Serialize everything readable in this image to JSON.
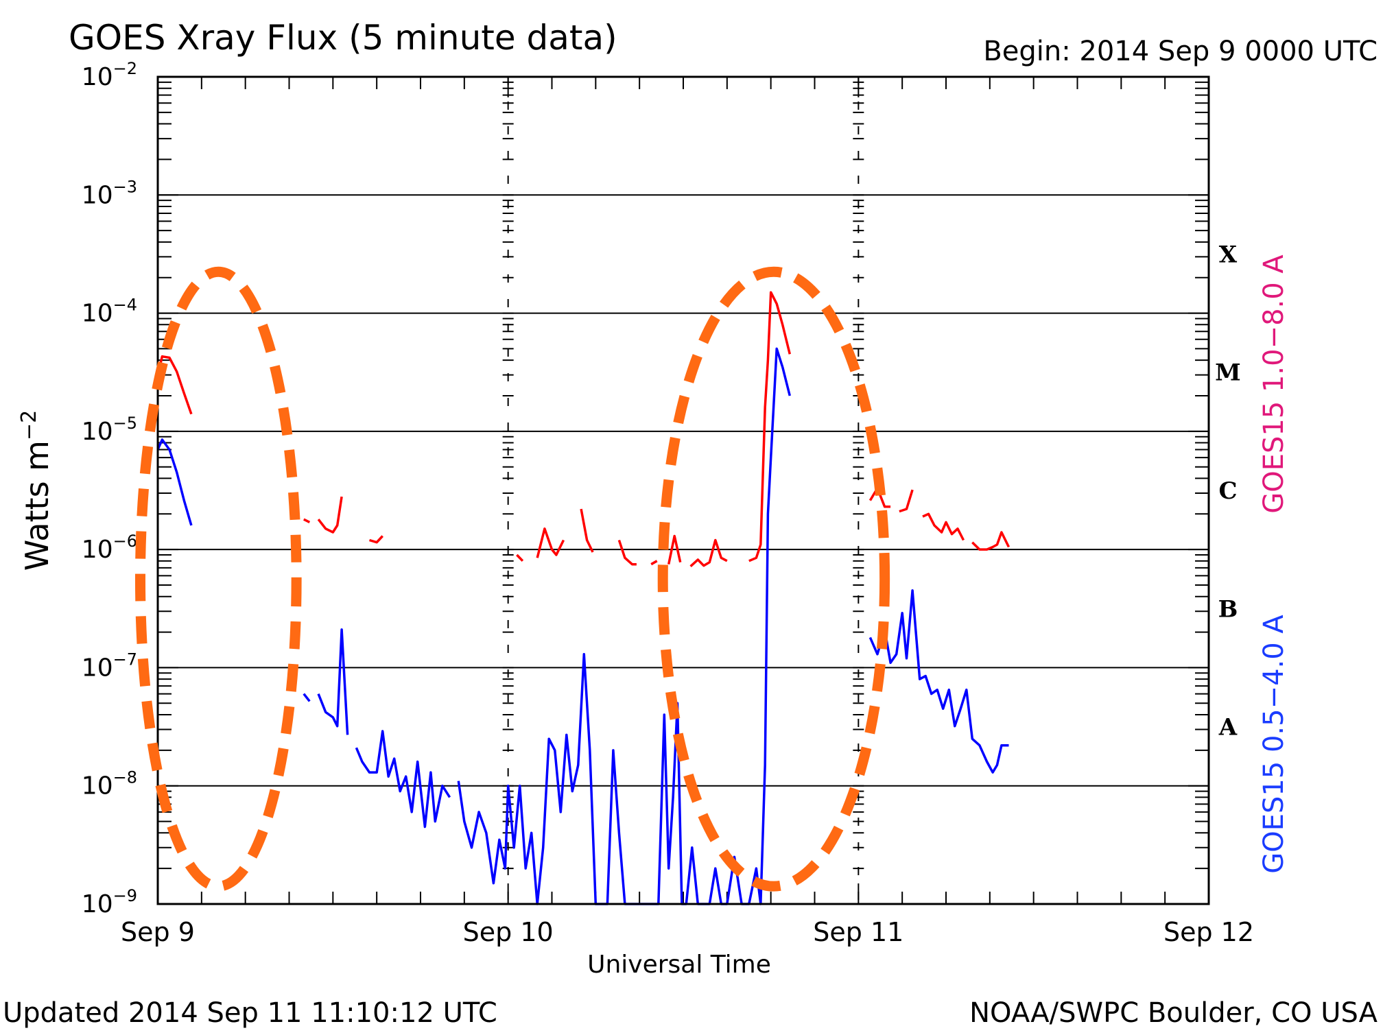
{
  "chart_data": {
    "type": "line",
    "title": "GOES Xray Flux (5 minute data)",
    "begin": "Begin:  2014 Sep 9 0000 UTC",
    "xlabel": "Universal Time",
    "ylabel": "Watts m",
    "ylabel_sup": "−2",
    "updated": "Updated 2014 Sep 11 11:10:12 UTC",
    "credit": "NOAA/SWPC Boulder, CO USA",
    "y_scale": "log",
    "ylim": [
      1e-09,
      0.01
    ],
    "xlim": [
      0,
      72
    ],
    "x_unit": "hours since 2014 Sep 9 0000 UTC",
    "grid": true,
    "x_ticks": [
      {
        "x": 0,
        "label": "Sep 9"
      },
      {
        "x": 24,
        "label": "Sep 10"
      },
      {
        "x": 48,
        "label": "Sep 11"
      },
      {
        "x": 72,
        "label": "Sep 12"
      }
    ],
    "y_ticks": [
      {
        "exp": -2,
        "base": "10",
        "sup": "−2"
      },
      {
        "exp": -3,
        "base": "10",
        "sup": "−3"
      },
      {
        "exp": -4,
        "base": "10",
        "sup": "−4"
      },
      {
        "exp": -5,
        "base": "10",
        "sup": "−5"
      },
      {
        "exp": -6,
        "base": "10",
        "sup": "−6"
      },
      {
        "exp": -7,
        "base": "10",
        "sup": "−7"
      },
      {
        "exp": -8,
        "base": "10",
        "sup": "−8"
      },
      {
        "exp": -9,
        "base": "10",
        "sup": "−9"
      }
    ],
    "class_labels": [
      {
        "label": "X",
        "exp": -3.5
      },
      {
        "label": "M",
        "exp": -4.5
      },
      {
        "label": "C",
        "exp": -5.5
      },
      {
        "label": "B",
        "exp": -6.5
      },
      {
        "label": "A",
        "exp": -7.5
      }
    ],
    "legend": [
      {
        "name": "GOES15 1.0−8.0 A",
        "color": "#e0187a"
      },
      {
        "name": "GOES15 0.5−4.0 A",
        "color": "#1a3cff"
      }
    ],
    "annotations": [
      {
        "type": "dashed-ellipse",
        "color": "#ff6a13",
        "x_range": [
          -1.2,
          9.5
        ],
        "log_range": [
          -3.65,
          -8.85
        ]
      },
      {
        "type": "dashed-ellipse",
        "color": "#ff6a13",
        "x_range": [
          34.6,
          49.8
        ],
        "log_range": [
          -3.65,
          -8.85
        ]
      }
    ],
    "series": [
      {
        "name": "GOES15 1.0−8.0 A",
        "color": "#ff0000",
        "x": [
          0,
          0.3,
          0.8,
          1.3,
          1.8,
          2.3,
          3,
          4,
          5,
          6,
          7,
          8,
          8.6,
          9.2,
          10,
          10.4,
          11,
          11.5,
          12,
          12.3,
          12.6,
          13.5,
          14.5,
          15,
          15.4,
          16,
          17,
          18,
          19,
          20,
          21,
          22,
          23,
          24,
          24.6,
          25,
          26,
          26.5,
          27,
          27.3,
          27.8,
          28.4,
          29,
          29.4,
          29.8,
          30.4,
          31,
          31.6,
          32,
          32.5,
          32.8,
          33.8,
          34.2,
          35,
          35.4,
          35.8,
          36.5,
          37,
          37.4,
          37.8,
          38.2,
          38.6,
          39,
          39.8,
          40.5,
          41,
          41.3,
          41.6,
          41.8,
          42,
          42.4,
          42.8,
          43.3,
          44,
          45,
          46,
          47,
          48,
          48.8,
          49.3,
          49.8,
          50.2,
          50.8,
          51.3,
          51.7,
          52.4,
          52.8,
          53.2,
          53.7,
          54,
          54.4,
          54.8,
          55.2,
          55.8,
          56.3,
          56.8,
          57.2,
          57.5,
          57.8,
          58.3
        ],
        "y": [
          3e-05,
          4.3e-05,
          4.2e-05,
          3.2e-05,
          2.1e-05,
          1.4e-05,
          8e-06,
          5.5e-06,
          4.2e-06,
          3.8e-06,
          3.2e-06,
          2.7e-06,
          2.3e-06,
          2.1e-06,
          1.8e-06,
          1.7e-06,
          1.8e-06,
          1.5e-06,
          1.4e-06,
          1.6e-06,
          2.8e-06,
          1.3e-06,
          1.2e-06,
          1.15e-06,
          1.3e-06,
          1.1e-06,
          1e-06,
          1e-06,
          9.5e-07,
          9.7e-07,
          9e-07,
          9.8e-07,
          8.5e-07,
          1.05e-06,
          9e-07,
          8e-07,
          8.5e-07,
          1.5e-06,
          1e-06,
          9e-07,
          1.2e-06,
          1.1e-06,
          2.2e-06,
          1.2e-06,
          9.5e-07,
          8.5e-07,
          9e-07,
          1.2e-06,
          8.5e-07,
          7.5e-07,
          7.5e-07,
          7.5e-07,
          8e-07,
          7.5e-07,
          1.3e-06,
          7.8e-07,
          7.2e-07,
          8.2e-07,
          7.3e-07,
          7.8e-07,
          1.2e-06,
          8.5e-07,
          8e-07,
          8.2e-07,
          8e-07,
          8.5e-07,
          1.1e-06,
          1.6e-05,
          4e-05,
          0.00015,
          0.00012,
          8e-05,
          4.5e-05,
          2e-05,
          1e-05,
          6e-06,
          3.9e-06,
          2.7e-06,
          2.6e-06,
          3.3e-06,
          2.3e-06,
          2.3e-06,
          2.1e-06,
          2.2e-06,
          3.2e-06,
          1.9e-06,
          2e-06,
          1.6e-06,
          1.4e-06,
          1.7e-06,
          1.35e-06,
          1.5e-06,
          1.2e-06,
          1.15e-06,
          1e-06,
          1e-06,
          1.05e-06,
          1.1e-06,
          1.4e-06,
          1.05e-06
        ]
      },
      {
        "name": "GOES15 0.5−4.0 A",
        "color": "#0000ff",
        "x": [
          0,
          0.3,
          0.8,
          1.3,
          1.8,
          2.3,
          3,
          4,
          5,
          6,
          7,
          8,
          8.6,
          9.2,
          10,
          10.4,
          11,
          11.5,
          12,
          12.3,
          12.6,
          13,
          13.6,
          14,
          14.5,
          15,
          15.4,
          15.8,
          16.2,
          16.6,
          17,
          17.4,
          17.8,
          18.3,
          18.7,
          19,
          19.5,
          20,
          20.6,
          21,
          21.5,
          22,
          22.5,
          23,
          23.4,
          23.8,
          24,
          24.4,
          24.8,
          25.2,
          25.6,
          26,
          26.4,
          26.8,
          27.2,
          27.6,
          28,
          28.4,
          28.8,
          29.2,
          29.6,
          30,
          30.4,
          30.8,
          31.2,
          31.6,
          32,
          32.5,
          33,
          33.5,
          34,
          34.3,
          34.7,
          35,
          35.3,
          35.6,
          35.9,
          36.2,
          36.6,
          37,
          37.4,
          37.8,
          38.2,
          38.6,
          39,
          39.5,
          40,
          40.5,
          41,
          41.3,
          41.6,
          41.8,
          42,
          42.4,
          42.8,
          43.3,
          44,
          45,
          46,
          47,
          48,
          48.8,
          49.3,
          49.8,
          50.2,
          50.6,
          51,
          51.3,
          51.7,
          52.2,
          52.6,
          53,
          53.4,
          53.8,
          54.2,
          54.6,
          55,
          55.4,
          55.8,
          56.3,
          56.8,
          57.2,
          57.5,
          57.8,
          58.3
        ],
        "y": [
          7e-06,
          8.5e-06,
          7e-06,
          4.5e-06,
          2.6e-06,
          1.6e-06,
          7e-07,
          4e-07,
          2.9e-07,
          2.4e-07,
          1.9e-07,
          1.5e-07,
          1.2e-07,
          9e-08,
          6e-08,
          5.2e-08,
          6e-08,
          4.2e-08,
          3.8e-08,
          3.2e-08,
          2.1e-07,
          2.7e-08,
          2.1e-08,
          1.6e-08,
          1.3e-08,
          1.3e-08,
          2.9e-08,
          1.2e-08,
          1.7e-08,
          9e-09,
          1.2e-08,
          6e-09,
          1.6e-08,
          4.5e-09,
          1.3e-08,
          5e-09,
          1e-08,
          8e-09,
          1.1e-08,
          5e-09,
          3e-09,
          6e-09,
          4e-09,
          1.5e-09,
          3.5e-09,
          2e-09,
          1e-08,
          3e-09,
          1e-08,
          2e-09,
          4e-09,
          1e-09,
          3e-09,
          2.5e-08,
          2e-08,
          6e-09,
          2.7e-08,
          9e-09,
          1.5e-08,
          1.3e-07,
          2e-08,
          1e-09,
          1e-09,
          1e-09,
          2e-08,
          4e-09,
          1e-09,
          1e-09,
          1e-09,
          1e-09,
          1e-09,
          1e-09,
          4e-08,
          2e-09,
          8e-09,
          5e-08,
          1e-09,
          1e-09,
          3e-09,
          1e-09,
          1e-09,
          1e-09,
          2e-09,
          1e-09,
          1e-09,
          2.5e-09,
          1e-09,
          1e-09,
          2e-09,
          1e-09,
          1.5e-08,
          2e-06,
          6e-06,
          5e-05,
          3.5e-05,
          2e-05,
          1e-05,
          4e-06,
          1.5e-06,
          7e-07,
          3.2e-07,
          1.8e-07,
          1.3e-07,
          2.1e-07,
          1.1e-07,
          1.3e-07,
          2.9e-07,
          1.2e-07,
          4.5e-07,
          8e-08,
          8.5e-08,
          6e-08,
          6.5e-08,
          4.5e-08,
          6.5e-08,
          3.2e-08,
          4.5e-08,
          6.5e-08,
          2.5e-08,
          2.2e-08,
          1.6e-08,
          1.3e-08,
          1.5e-08,
          2.2e-08,
          2.2e-08
        ]
      }
    ]
  }
}
